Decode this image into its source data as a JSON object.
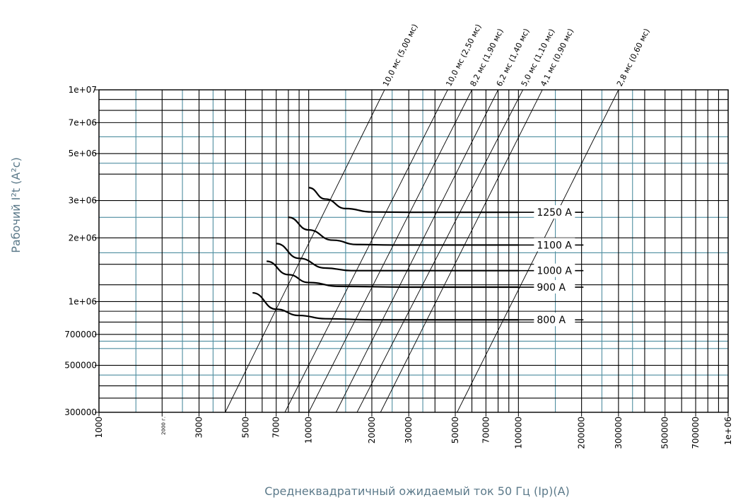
{
  "chart_data": {
    "type": "line",
    "xlabel": "Среднеквадратичный ожидаемый ток 50 Гц (Ip)(A)",
    "ylabel": "Рабочий I²t (A²c)",
    "x_scale": "log",
    "y_scale": "log",
    "xlim": [
      1000,
      1000000
    ],
    "ylim": [
      300000,
      10000000
    ],
    "grid": true,
    "x_ticks": [
      {
        "value": 1000,
        "label": "1000"
      },
      {
        "value": 2000,
        "label": "2000 г."
      },
      {
        "value": 3000,
        "label": "3000"
      },
      {
        "value": 5000,
        "label": "5000"
      },
      {
        "value": 7000,
        "label": "7000"
      },
      {
        "value": 10000,
        "label": "10000"
      },
      {
        "value": 20000,
        "label": "20000"
      },
      {
        "value": 30000,
        "label": "30000"
      },
      {
        "value": 50000,
        "label": "50000"
      },
      {
        "value": 70000,
        "label": "70000"
      },
      {
        "value": 100000,
        "label": "100000"
      },
      {
        "value": 200000,
        "label": "200000"
      },
      {
        "value": 300000,
        "label": "300000"
      },
      {
        "value": 500000,
        "label": "500000"
      },
      {
        "value": 700000,
        "label": "700000"
      },
      {
        "value": 1000000,
        "label": "1e+06"
      }
    ],
    "y_ticks": [
      {
        "value": 10000000,
        "label": "1e+07"
      },
      {
        "value": 7000000,
        "label": "7e+06"
      },
      {
        "value": 5000000,
        "label": "5e+06"
      },
      {
        "value": 3000000,
        "label": "3e+06"
      },
      {
        "value": 2000000,
        "label": "2e+06"
      },
      {
        "value": 1000000,
        "label": "1e+06"
      },
      {
        "value": 700000,
        "label": "700000"
      },
      {
        "value": 500000,
        "label": "500000"
      },
      {
        "value": 300000,
        "label": "300000"
      }
    ],
    "grid_x_black": [
      1000,
      2000,
      3000,
      4000,
      5000,
      6000,
      7000,
      8000,
      9000,
      10000,
      20000,
      30000,
      40000,
      50000,
      60000,
      70000,
      80000,
      90000,
      100000,
      200000,
      300000,
      400000,
      500000,
      600000,
      700000,
      800000,
      900000,
      1000000
    ],
    "grid_x_blue": [
      1500,
      2500,
      3500,
      15000,
      25000,
      35000,
      150000,
      250000,
      350000
    ],
    "grid_y_black": [
      300000,
      350000,
      400000,
      500000,
      700000,
      800000,
      900000,
      1000000,
      1200000,
      1500000,
      2000000,
      3000000,
      4000000,
      5000000,
      7000000,
      8000000,
      9000000,
      10000000
    ],
    "grid_y_blue": [
      450000,
      600000,
      650000,
      1700000,
      2500000,
      4500000,
      6000000
    ],
    "series": [
      {
        "name": "1250 A",
        "points": [
          [
            10000,
            3450000
          ],
          [
            12000,
            3050000
          ],
          [
            15000,
            2750000
          ],
          [
            20000,
            2650000
          ],
          [
            30000,
            2640000
          ],
          [
            100000,
            2640000
          ]
        ]
      },
      {
        "name": "1100 A",
        "points": [
          [
            8000,
            2500000
          ],
          [
            10000,
            2180000
          ],
          [
            13000,
            1950000
          ],
          [
            17000,
            1860000
          ],
          [
            25000,
            1850000
          ],
          [
            100000,
            1850000
          ]
        ]
      },
      {
        "name": "1000 A",
        "points": [
          [
            7000,
            1880000
          ],
          [
            9000,
            1600000
          ],
          [
            12000,
            1440000
          ],
          [
            16000,
            1400000
          ],
          [
            30000,
            1400000
          ],
          [
            100000,
            1400000
          ]
        ]
      },
      {
        "name": "900 A",
        "points": [
          [
            6300,
            1550000
          ],
          [
            8000,
            1340000
          ],
          [
            10000,
            1230000
          ],
          [
            14000,
            1180000
          ],
          [
            30000,
            1170000
          ],
          [
            100000,
            1170000
          ]
        ]
      },
      {
        "name": "800 A",
        "points": [
          [
            5400,
            1100000
          ],
          [
            7000,
            920000
          ],
          [
            9000,
            860000
          ],
          [
            12000,
            830000
          ],
          [
            20000,
            820000
          ],
          [
            100000,
            820000
          ]
        ]
      }
    ],
    "diagonals": [
      {
        "label": "10,0 мс (5,00 мс)",
        "points": [
          [
            4000,
            300000
          ],
          [
            23000,
            10000000
          ]
        ]
      },
      {
        "label": "10,0 мс (2,50 мс)",
        "points": [
          [
            7700,
            300000
          ],
          [
            46000,
            10000000
          ]
        ]
      },
      {
        "label": "8,2 мс (1,90 мс)",
        "points": [
          [
            10000,
            300000
          ],
          [
            60000,
            10000000
          ]
        ]
      },
      {
        "label": "6,2 мс (1,40 мс)",
        "points": [
          [
            13500,
            300000
          ],
          [
            80000,
            10000000
          ]
        ]
      },
      {
        "label": "5,0 мс (1,10 мс)",
        "points": [
          [
            17000,
            300000
          ],
          [
            105000,
            10000000
          ]
        ]
      },
      {
        "label": "4,1 мс (0,90 мс)",
        "points": [
          [
            22000,
            300000
          ],
          [
            130000,
            10000000
          ]
        ]
      },
      {
        "label": "2,8 мс (0,60 мс)",
        "points": [
          [
            51000,
            300000
          ],
          [
            300000,
            10000000
          ]
        ]
      }
    ]
  }
}
